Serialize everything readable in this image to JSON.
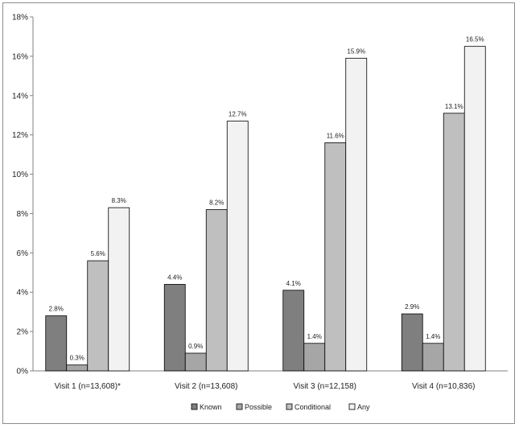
{
  "chart_data": {
    "type": "bar",
    "title": "",
    "xlabel": "",
    "ylabel": "",
    "ylim": [
      0,
      18
    ],
    "yticks": [
      0,
      2,
      4,
      6,
      8,
      10,
      12,
      14,
      16,
      18
    ],
    "ytick_labels": [
      "0%",
      "2%",
      "4%",
      "6%",
      "8%",
      "10%",
      "12%",
      "14%",
      "16%",
      "18%"
    ],
    "categories": [
      "Visit 1 (n=13,608)*",
      "Visit 2 (n=13,608)",
      "Visit 3 (n=12,158)",
      "Visit 4 (n=10,836)"
    ],
    "series": [
      {
        "name": "Known",
        "color": "#7f7f7f",
        "values": [
          2.8,
          4.4,
          4.1,
          2.9
        ],
        "labels": [
          "2.8%",
          "4.4%",
          "4.1%",
          "2.9%"
        ]
      },
      {
        "name": "Possible",
        "color": "#a6a6a6",
        "values": [
          0.3,
          0.9,
          1.4,
          1.4
        ],
        "labels": [
          "0.3%",
          "0.9%",
          "1.4%",
          "1.4%"
        ]
      },
      {
        "name": "Conditional",
        "color": "#bfbfbf",
        "values": [
          5.6,
          8.2,
          11.6,
          13.1
        ],
        "labels": [
          "5.6%",
          "8.2%",
          "11.6%",
          "13.1%"
        ]
      },
      {
        "name": "Any",
        "color": "#f2f2f2",
        "values": [
          8.3,
          12.7,
          15.9,
          16.5
        ],
        "labels": [
          "8.3%",
          "12.7%",
          "15.9%",
          "16.5%"
        ]
      }
    ],
    "grid": false,
    "legend_position": "bottom"
  }
}
